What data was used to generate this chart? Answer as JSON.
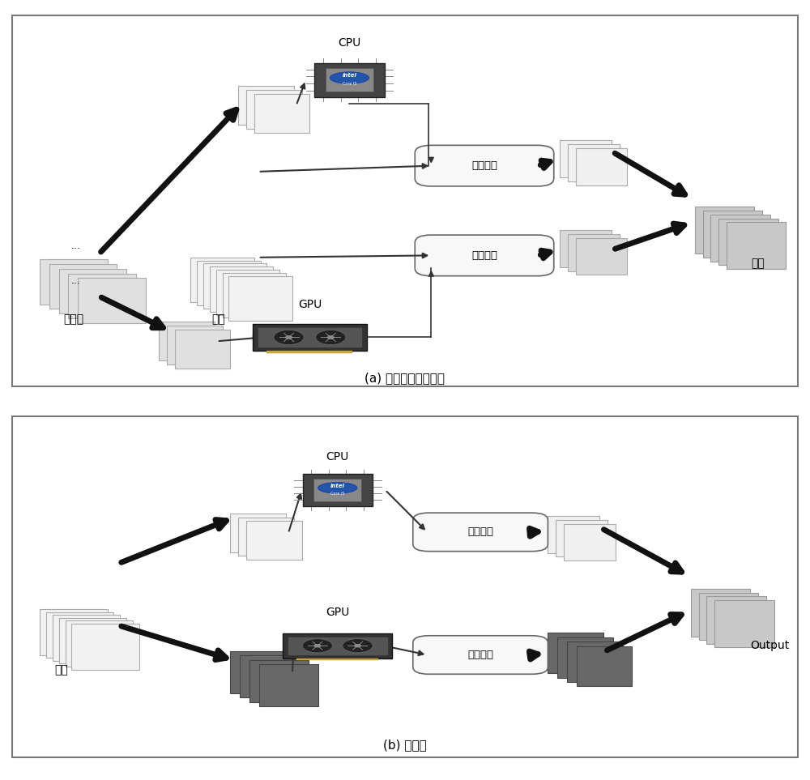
{
  "bg_color": "#ffffff",
  "light_gray": "#e8e8e8",
  "mid_gray": "#b0b0b0",
  "dark_gray": "#686868",
  "panel_a_caption": "(a) 卷积层和全连接层",
  "panel_b_caption": "(b) 池化层",
  "label_juanji_he": "卷积核",
  "label_shuru_a": "输入",
  "label_shuchu": "输出",
  "label_cpu": "CPU",
  "label_gpu": "GPU",
  "label_juanji_yusuan": "卷积运算",
  "label_chihua_yusuan": "池化运算",
  "label_shuru_b": "输入",
  "label_output": "Output"
}
